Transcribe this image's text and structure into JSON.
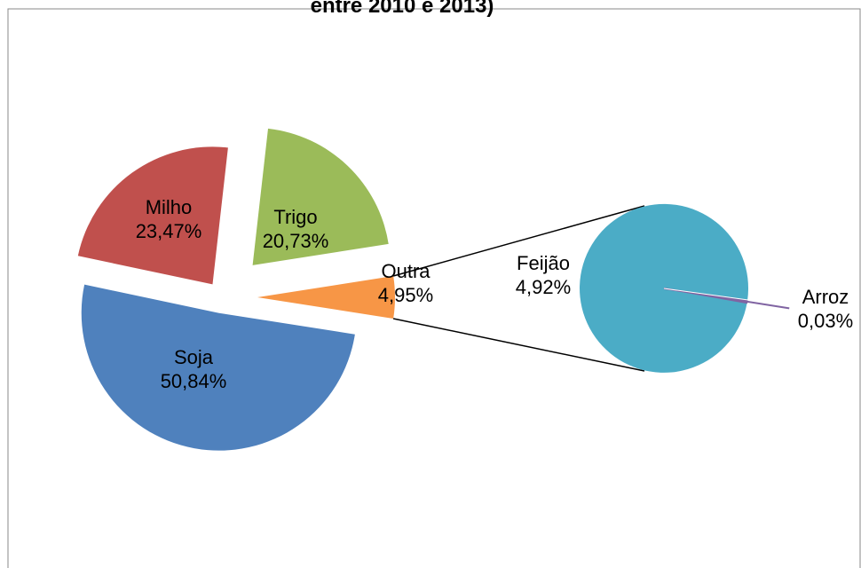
{
  "chart_data": {
    "type": "pie",
    "subtype": "pie-of-pie",
    "title": "entre 2010 e 2013)",
    "slices": [
      {
        "name": "Soja",
        "label": "50,84%",
        "value": 50.84,
        "color": "#4F81BD"
      },
      {
        "name": "Milho",
        "label": "23,47%",
        "value": 23.47,
        "color": "#C0504D"
      },
      {
        "name": "Trigo",
        "label": "20,73%",
        "value": 20.73,
        "color": "#9BBB59"
      },
      {
        "name": "Outra",
        "label": "4,95%",
        "value": 4.95,
        "color": "#F79646"
      }
    ],
    "breakout_of": "Outra",
    "breakout_slices": [
      {
        "name": "Feijão",
        "label": "4,92%",
        "value": 4.92,
        "color": "#4BACC6"
      },
      {
        "name": "Arroz",
        "label": "0,03%",
        "value": 0.03,
        "color": "#8064A2"
      }
    ],
    "legend": "none",
    "exploded": true
  }
}
